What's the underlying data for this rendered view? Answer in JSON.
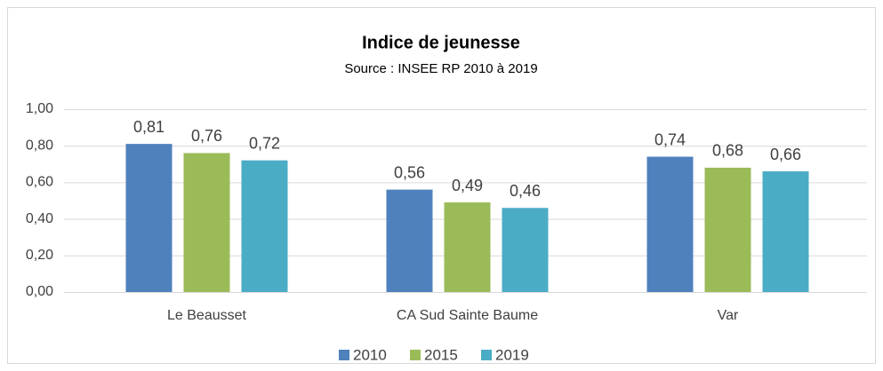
{
  "chart_data": {
    "type": "bar",
    "title": "Indice de jeunesse",
    "subtitle": "Source : INSEE RP 2010 à 2019",
    "categories": [
      "Le Beausset",
      "CA Sud Sainte Baume",
      "Var"
    ],
    "series": [
      {
        "name": "2010",
        "color": "#4f81bd",
        "values": [
          0.81,
          0.56,
          0.74
        ],
        "value_labels": [
          "0,81",
          "0,56",
          "0,74"
        ]
      },
      {
        "name": "2015",
        "color": "#9bbb59",
        "values": [
          0.76,
          0.49,
          0.68
        ],
        "value_labels": [
          "0,76",
          "0,49",
          "0,68"
        ]
      },
      {
        "name": "2019",
        "color": "#4bacc6",
        "values": [
          0.72,
          0.46,
          0.66
        ],
        "value_labels": [
          "0,72",
          "0,46",
          "0,66"
        ]
      }
    ],
    "ylim": [
      0,
      1
    ],
    "yticks": [
      {
        "value": 0,
        "label": "0,00"
      },
      {
        "value": 0.2,
        "label": "0,20"
      },
      {
        "value": 0.4,
        "label": "0,40"
      },
      {
        "value": 0.6,
        "label": "0,60"
      },
      {
        "value": 0.8,
        "label": "0,80"
      },
      {
        "value": 1,
        "label": "1,00"
      }
    ],
    "grid": true,
    "legend": "bottom"
  }
}
